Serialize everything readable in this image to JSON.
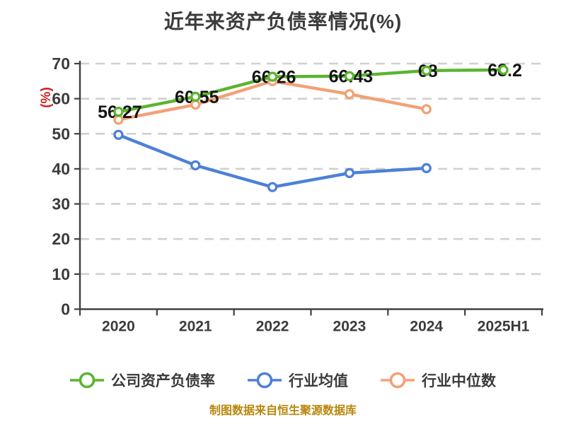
{
  "footer": {
    "note": "制图数据来自恒生聚源数据库",
    "color": "#b8860b"
  },
  "chart_data": {
    "type": "line",
    "title": "近年来资产负债率情况(%)",
    "xlabel": "",
    "ylabel": "(%)",
    "ylabel_color": "#cc2222",
    "categories": [
      "2020",
      "2021",
      "2022",
      "2023",
      "2024",
      "2025H1"
    ],
    "series": [
      {
        "id": "company",
        "name": "公司资产负债率",
        "color": "#5ab42f",
        "values": [
          56.27,
          60.55,
          66.26,
          66.43,
          68,
          68.2
        ],
        "point_labels": [
          "56.27",
          "60.55",
          "66.26",
          "66.43",
          "68",
          "68.2"
        ]
      },
      {
        "id": "industry-avg",
        "name": "行业均值",
        "color": "#4d80d8",
        "values": [
          49.7,
          41.0,
          34.8,
          38.8,
          40.2,
          null
        ],
        "point_labels": []
      },
      {
        "id": "industry-median",
        "name": "行业中位数",
        "color": "#f3a175",
        "values": [
          54.0,
          58.3,
          65.0,
          61.3,
          57.0,
          null
        ],
        "point_labels": []
      }
    ],
    "ylim": [
      0,
      70
    ],
    "y_ticks": [
      0,
      10,
      20,
      30,
      40,
      50,
      60,
      70
    ],
    "grid": "dashed-horizontal",
    "legend_position": "bottom",
    "marker_style": "white-filled-circle"
  }
}
